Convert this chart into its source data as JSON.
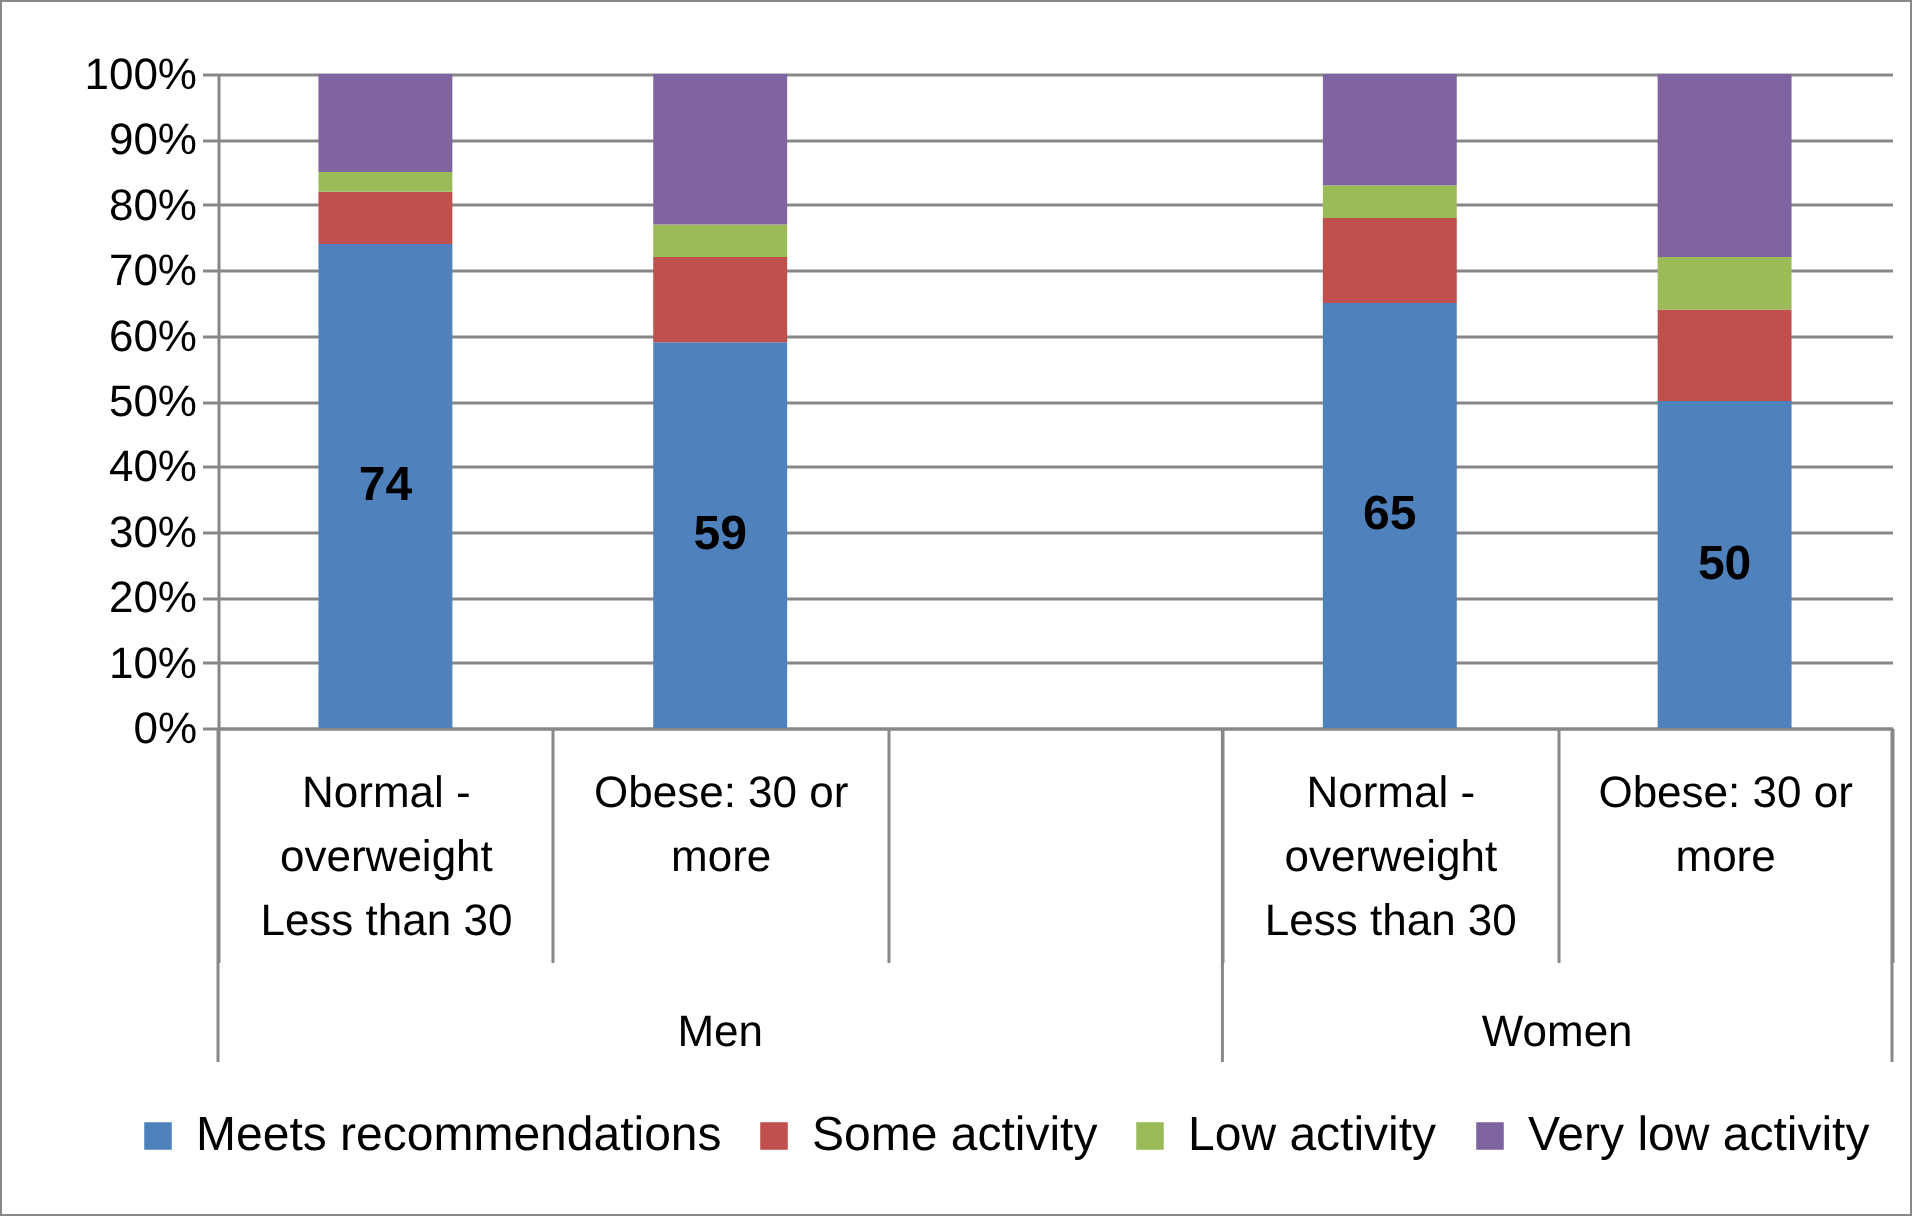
{
  "chart_data": {
    "type": "bar",
    "stacked": true,
    "categories": [
      "Normal - overweight Less than 30",
      "Obese: 30 or more",
      null,
      "Normal - overweight Less than 30",
      "Obese: 30 or more"
    ],
    "series": [
      {
        "name": "Meets recommendations",
        "color": "#4f81bd",
        "values": [
          74,
          59,
          null,
          65,
          50
        ],
        "value_labels": [
          "74",
          "59",
          null,
          "65",
          "50"
        ]
      },
      {
        "name": "Some activity",
        "color": "#c0504d",
        "values": [
          8,
          13,
          null,
          13,
          14
        ]
      },
      {
        "name": "Low activity",
        "color": "#9bbb59",
        "values": [
          3,
          5,
          null,
          5,
          8
        ]
      },
      {
        "name": "Very low activity",
        "color": "#8064a2",
        "values": [
          15,
          23,
          null,
          17,
          28
        ]
      }
    ],
    "ylim": [
      0,
      100
    ],
    "yticks": [
      {
        "value": 0,
        "label": "0%"
      },
      {
        "value": 10,
        "label": "10%"
      },
      {
        "value": 20,
        "label": "20%"
      },
      {
        "value": 30,
        "label": "30%"
      },
      {
        "value": 40,
        "label": "40%"
      },
      {
        "value": 50,
        "label": "50%"
      },
      {
        "value": 60,
        "label": "60%"
      },
      {
        "value": 70,
        "label": "70%"
      },
      {
        "value": 80,
        "label": "80%"
      },
      {
        "value": 90,
        "label": "90%"
      },
      {
        "value": 100,
        "label": "100%"
      }
    ],
    "grid": "y",
    "legend": "bottom",
    "annotations": [
      "Men",
      "Women"
    ]
  }
}
